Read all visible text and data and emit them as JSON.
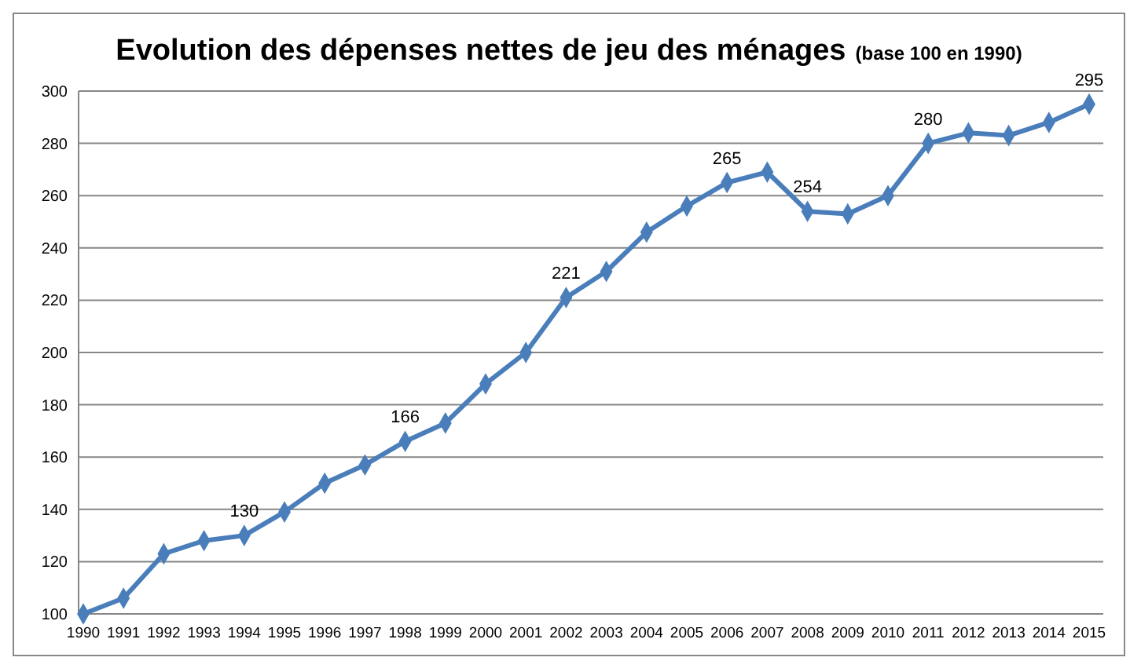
{
  "chart_data": {
    "type": "line",
    "title": "Evolution des dépenses nettes de jeu des ménages",
    "subtitle": "(base 100 en 1990)",
    "categories": [
      "1990",
      "1991",
      "1992",
      "1993",
      "1994",
      "1995",
      "1996",
      "1997",
      "1998",
      "1999",
      "2000",
      "2001",
      "2002",
      "2003",
      "2004",
      "2005",
      "2006",
      "2007",
      "2008",
      "2009",
      "2010",
      "2011",
      "2012",
      "2013",
      "2014",
      "2015"
    ],
    "series": [
      {
        "color": "#4a7ebb",
        "values": [
          100,
          106,
          123,
          128,
          130,
          139,
          150,
          157,
          166,
          173,
          188,
          200,
          221,
          231,
          246,
          256,
          265,
          269,
          254,
          253,
          260,
          280,
          284,
          283,
          288,
          295
        ],
        "value_labels": [
          null,
          null,
          null,
          null,
          "130",
          null,
          null,
          null,
          "166",
          null,
          null,
          null,
          "221",
          null,
          null,
          null,
          "265",
          null,
          "254",
          null,
          null,
          "280",
          null,
          null,
          null,
          "295"
        ]
      }
    ],
    "ylim": [
      100,
      300
    ],
    "yticks": [
      100,
      120,
      140,
      160,
      180,
      200,
      220,
      240,
      260,
      280,
      300
    ],
    "grid": "y",
    "marker": "diamond",
    "line_style": "solid"
  }
}
